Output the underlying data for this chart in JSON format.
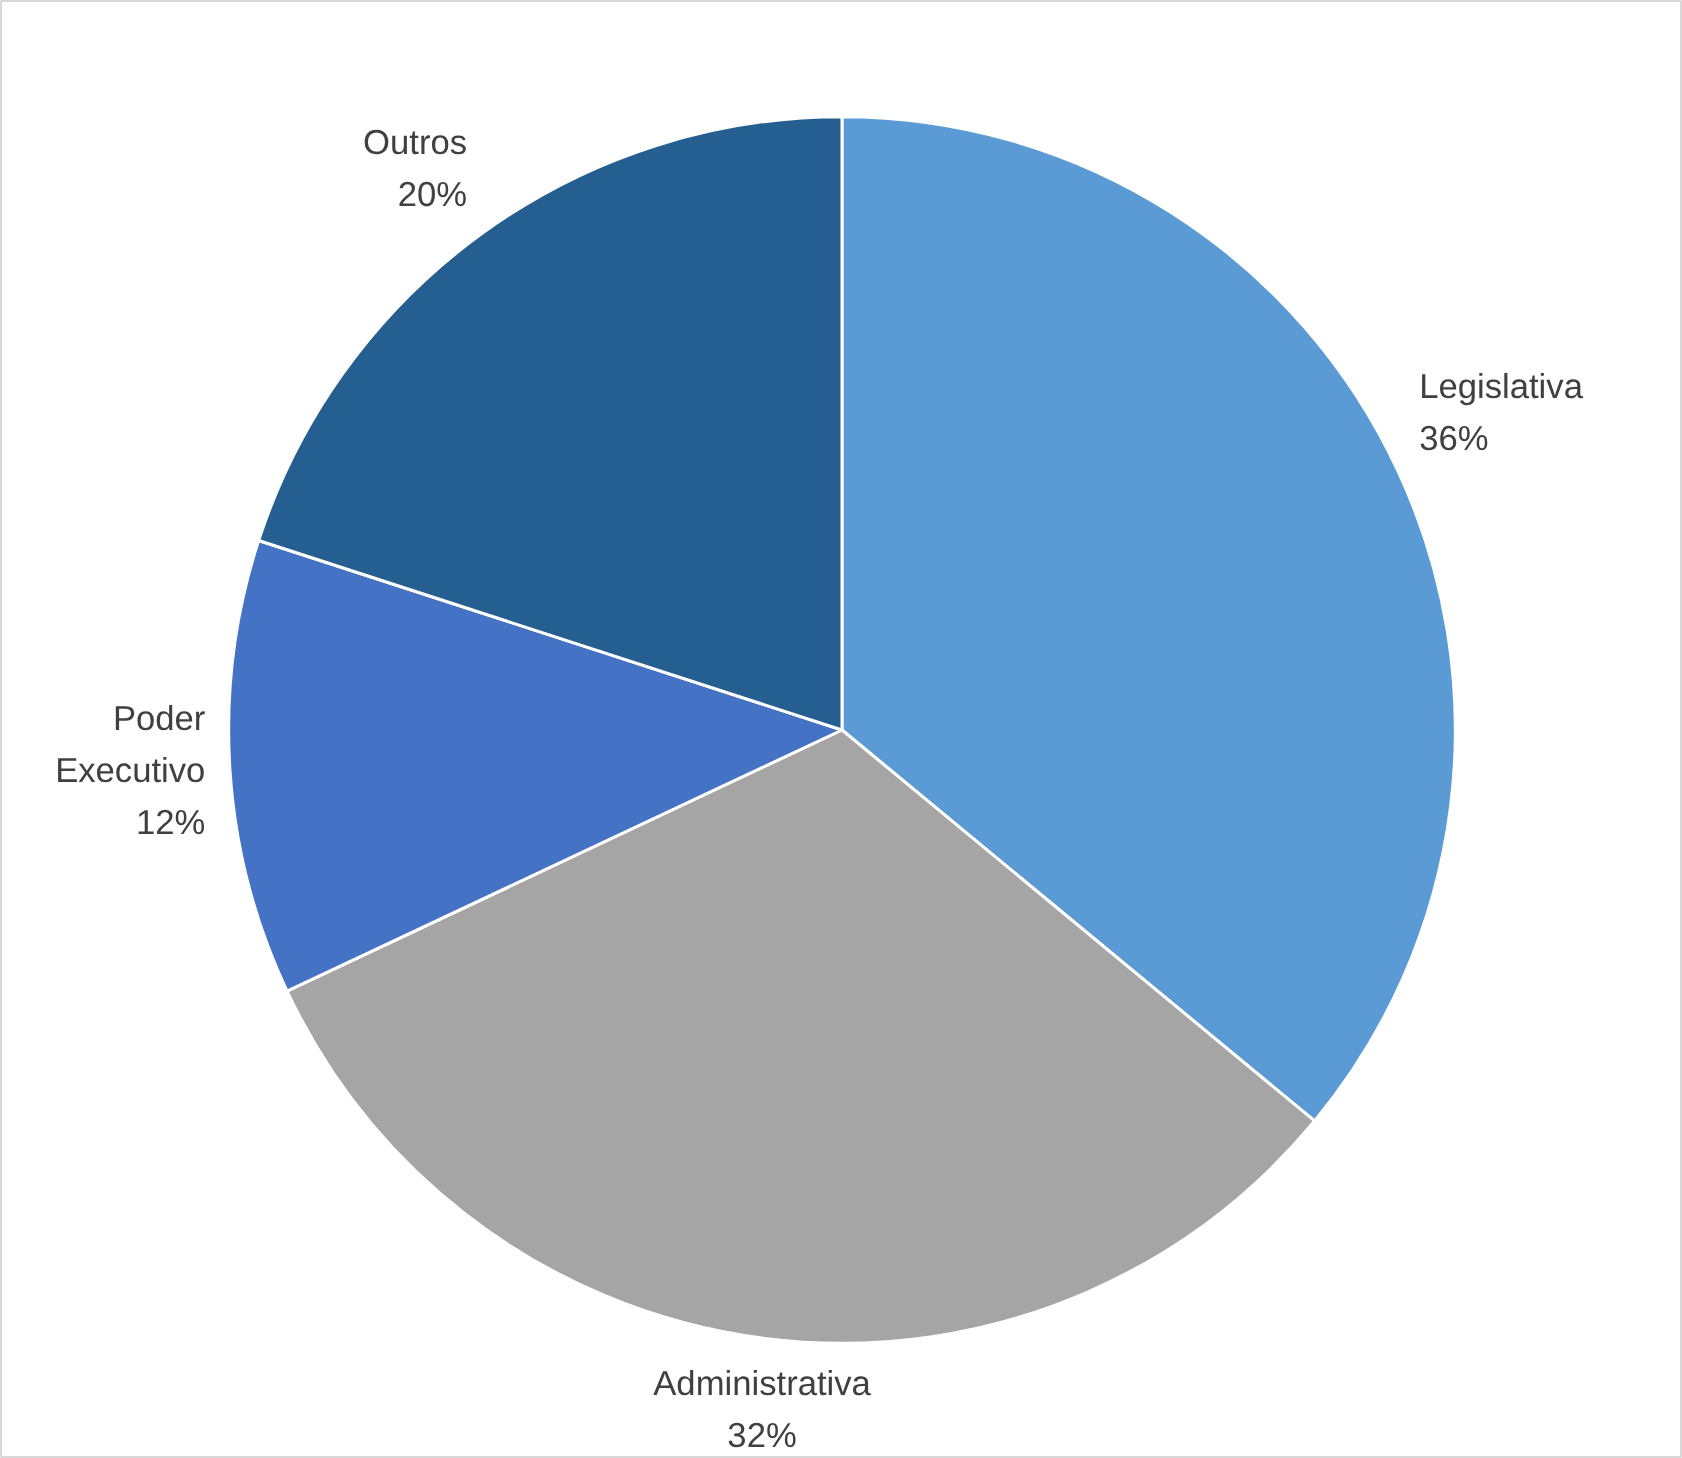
{
  "chart_data": {
    "type": "pie",
    "categories": [
      "Legislativa",
      "Administrativa",
      "Poder Executivo",
      "Outros"
    ],
    "values": [
      36,
      32,
      12,
      20
    ],
    "colors": [
      "#5b9bd5",
      "#a5a5a5",
      "#4472c4",
      "#255e91"
    ],
    "value_labels": [
      "36%",
      "32%",
      "12%",
      "20%"
    ]
  }
}
